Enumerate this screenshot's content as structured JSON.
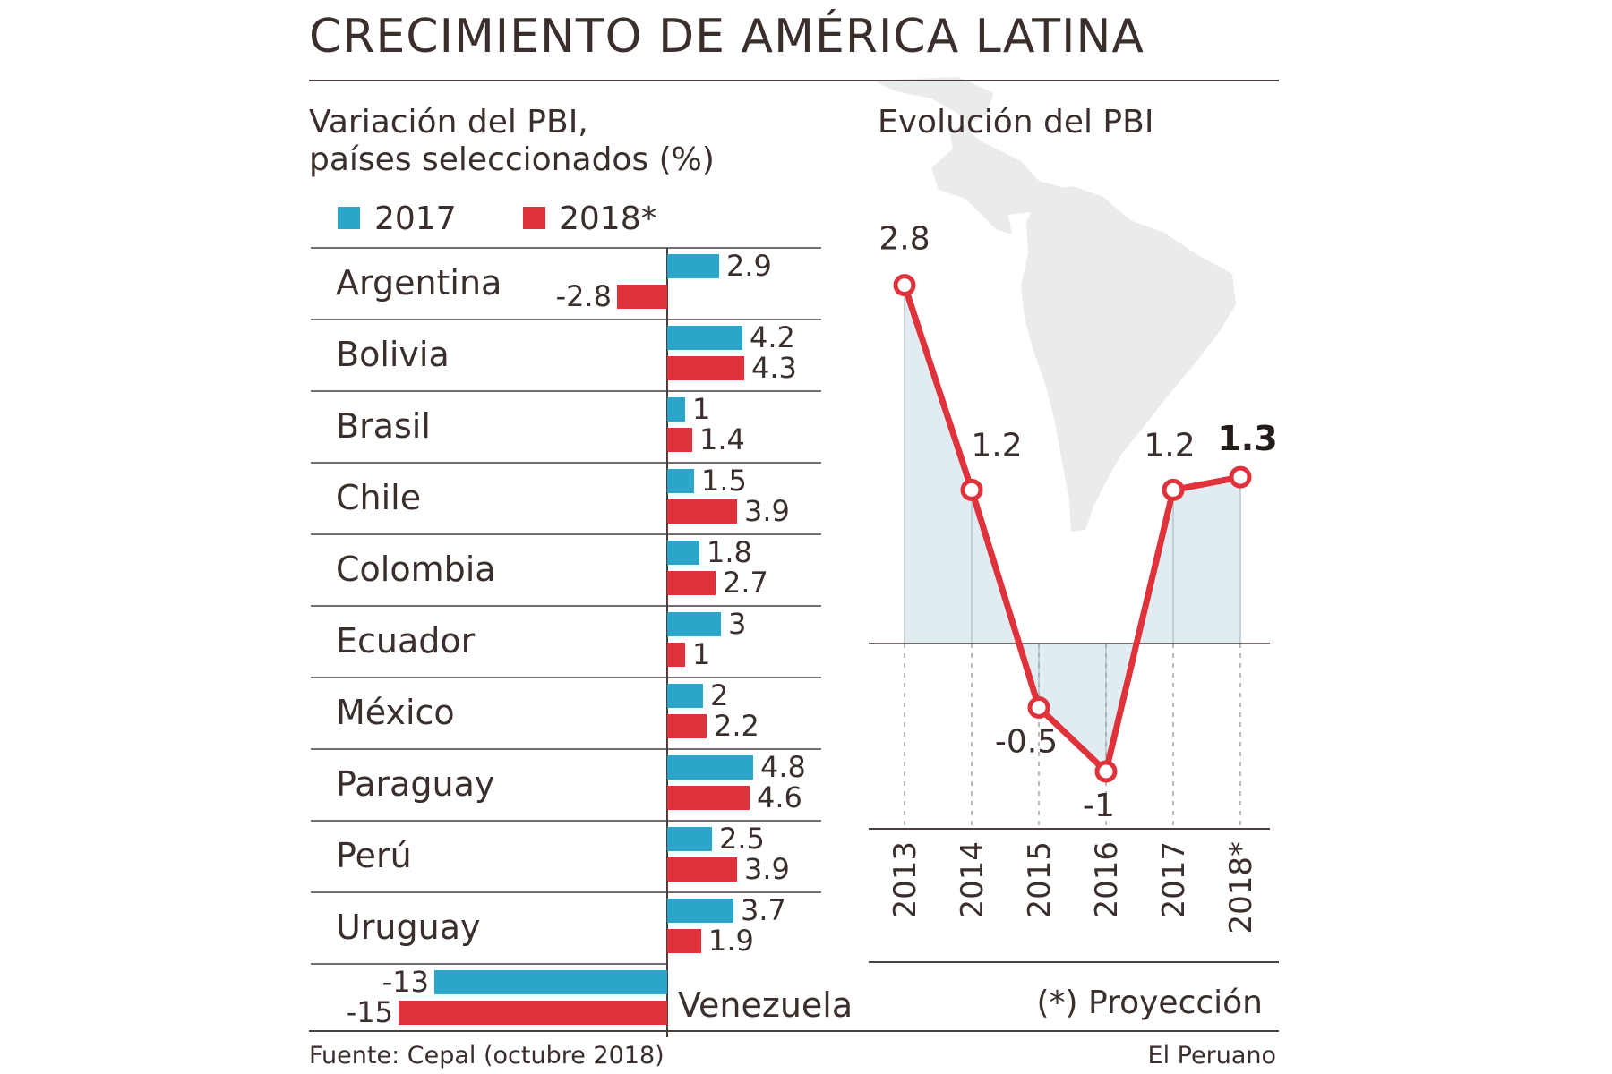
{
  "title": "CRECIMIENTO DE AMÉRICA LATINA",
  "left_subtitle_line1": "Variación del PBI,",
  "left_subtitle_line2": "países seleccionados (%)",
  "right_subtitle": "Evolución del PBI",
  "source": "Fuente: Cepal (octubre 2018)",
  "credit": "El Peruano",
  "footnote": "(*) Proyección",
  "colors": {
    "series_2017": "#2aa6cb",
    "series_2018": "#e0323a",
    "line": "#e0323a",
    "text": "#3a2f2c",
    "rule": "#4a3f3b",
    "area": "#d7e6ee",
    "map": "#eaecec"
  },
  "chart_data": [
    {
      "type": "bar",
      "orientation": "horizontal",
      "title": "Variación del PBI, países seleccionados (%)",
      "categories": [
        "Argentina",
        "Bolivia",
        "Brasil",
        "Chile",
        "Colombia",
        "Ecuador",
        "México",
        "Paraguay",
        "Perú",
        "Uruguay",
        "Venezuela"
      ],
      "series": [
        {
          "name": "2017",
          "values": [
            2.9,
            4.2,
            1,
            1.5,
            1.8,
            3,
            2,
            4.8,
            2.5,
            3.7,
            -13
          ]
        },
        {
          "name": "2018*",
          "values": [
            -2.8,
            4.3,
            1.4,
            3.9,
            2.7,
            1,
            2.2,
            4.6,
            3.9,
            1.9,
            -15
          ]
        }
      ],
      "value_labels": [
        [
          "2.9",
          "4.2",
          "1",
          "1.5",
          "1.8",
          "3",
          "2",
          "4.8",
          "2.5",
          "3.7",
          "-13"
        ],
        [
          "-2.8",
          "4.3",
          "1.4",
          "3.9",
          "2.7",
          "1",
          "2.2",
          "4.6",
          "3.9",
          "1.9",
          "-15"
        ]
      ],
      "legend": "top-left"
    },
    {
      "type": "line",
      "title": "Evolución del PBI",
      "x": [
        "2013",
        "2014",
        "2015",
        "2016",
        "2017",
        "2018*"
      ],
      "values": [
        2.8,
        1.2,
        -0.5,
        -1,
        1.2,
        1.3
      ],
      "value_labels": [
        "2.8",
        "1.2",
        "-0.5",
        "-1",
        "1.2",
        "1.3"
      ],
      "ylim": [
        -1.45,
        3.0
      ],
      "grid": false
    }
  ]
}
